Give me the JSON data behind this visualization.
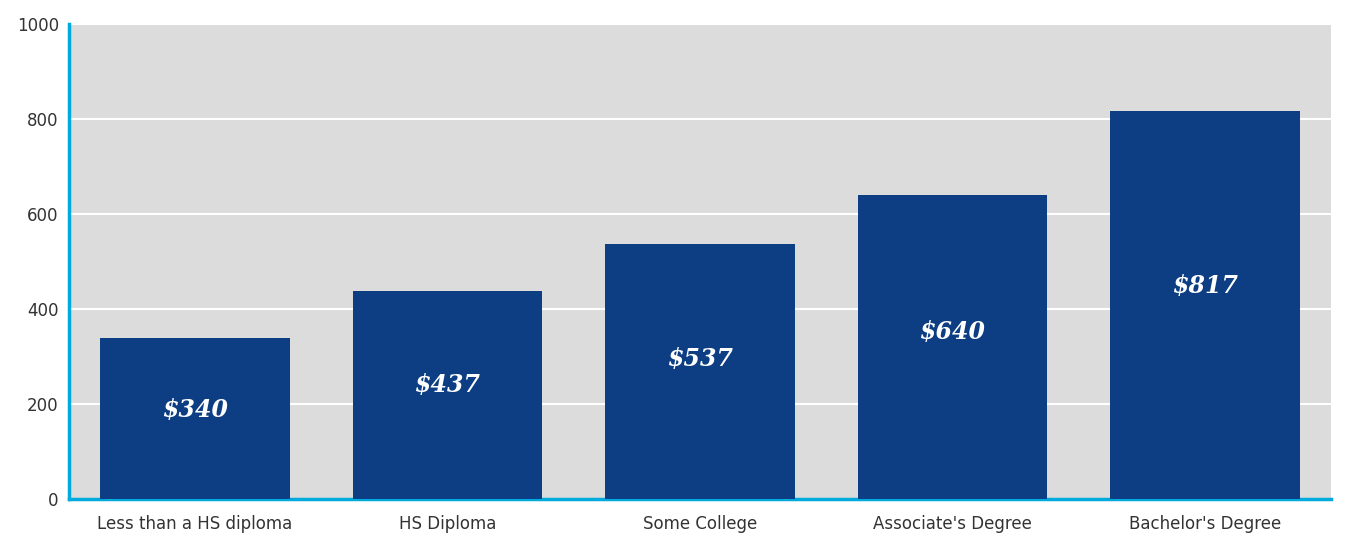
{
  "categories": [
    "Less than a HS diploma",
    "HS Diploma",
    "Some College",
    "Associate's Degree",
    "Bachelor's Degree"
  ],
  "values": [
    340,
    437,
    537,
    640,
    817
  ],
  "labels": [
    "$340",
    "$437",
    "$537",
    "$640",
    "$817"
  ],
  "bar_color": "#0d3d82",
  "background_color": "#dcdcdc",
  "figure_background_color": "#ffffff",
  "ylim": [
    0,
    1000
  ],
  "yticks": [
    0,
    200,
    400,
    600,
    800,
    1000
  ],
  "grid_color": "#ffffff",
  "label_color": "#ffffff",
  "label_fontsize": 17,
  "label_fontstyle": "italic",
  "label_fontweight": "bold",
  "tick_color": "#333333",
  "tick_fontsize": 12,
  "spine_color": "#00aadd",
  "bar_width": 0.75
}
